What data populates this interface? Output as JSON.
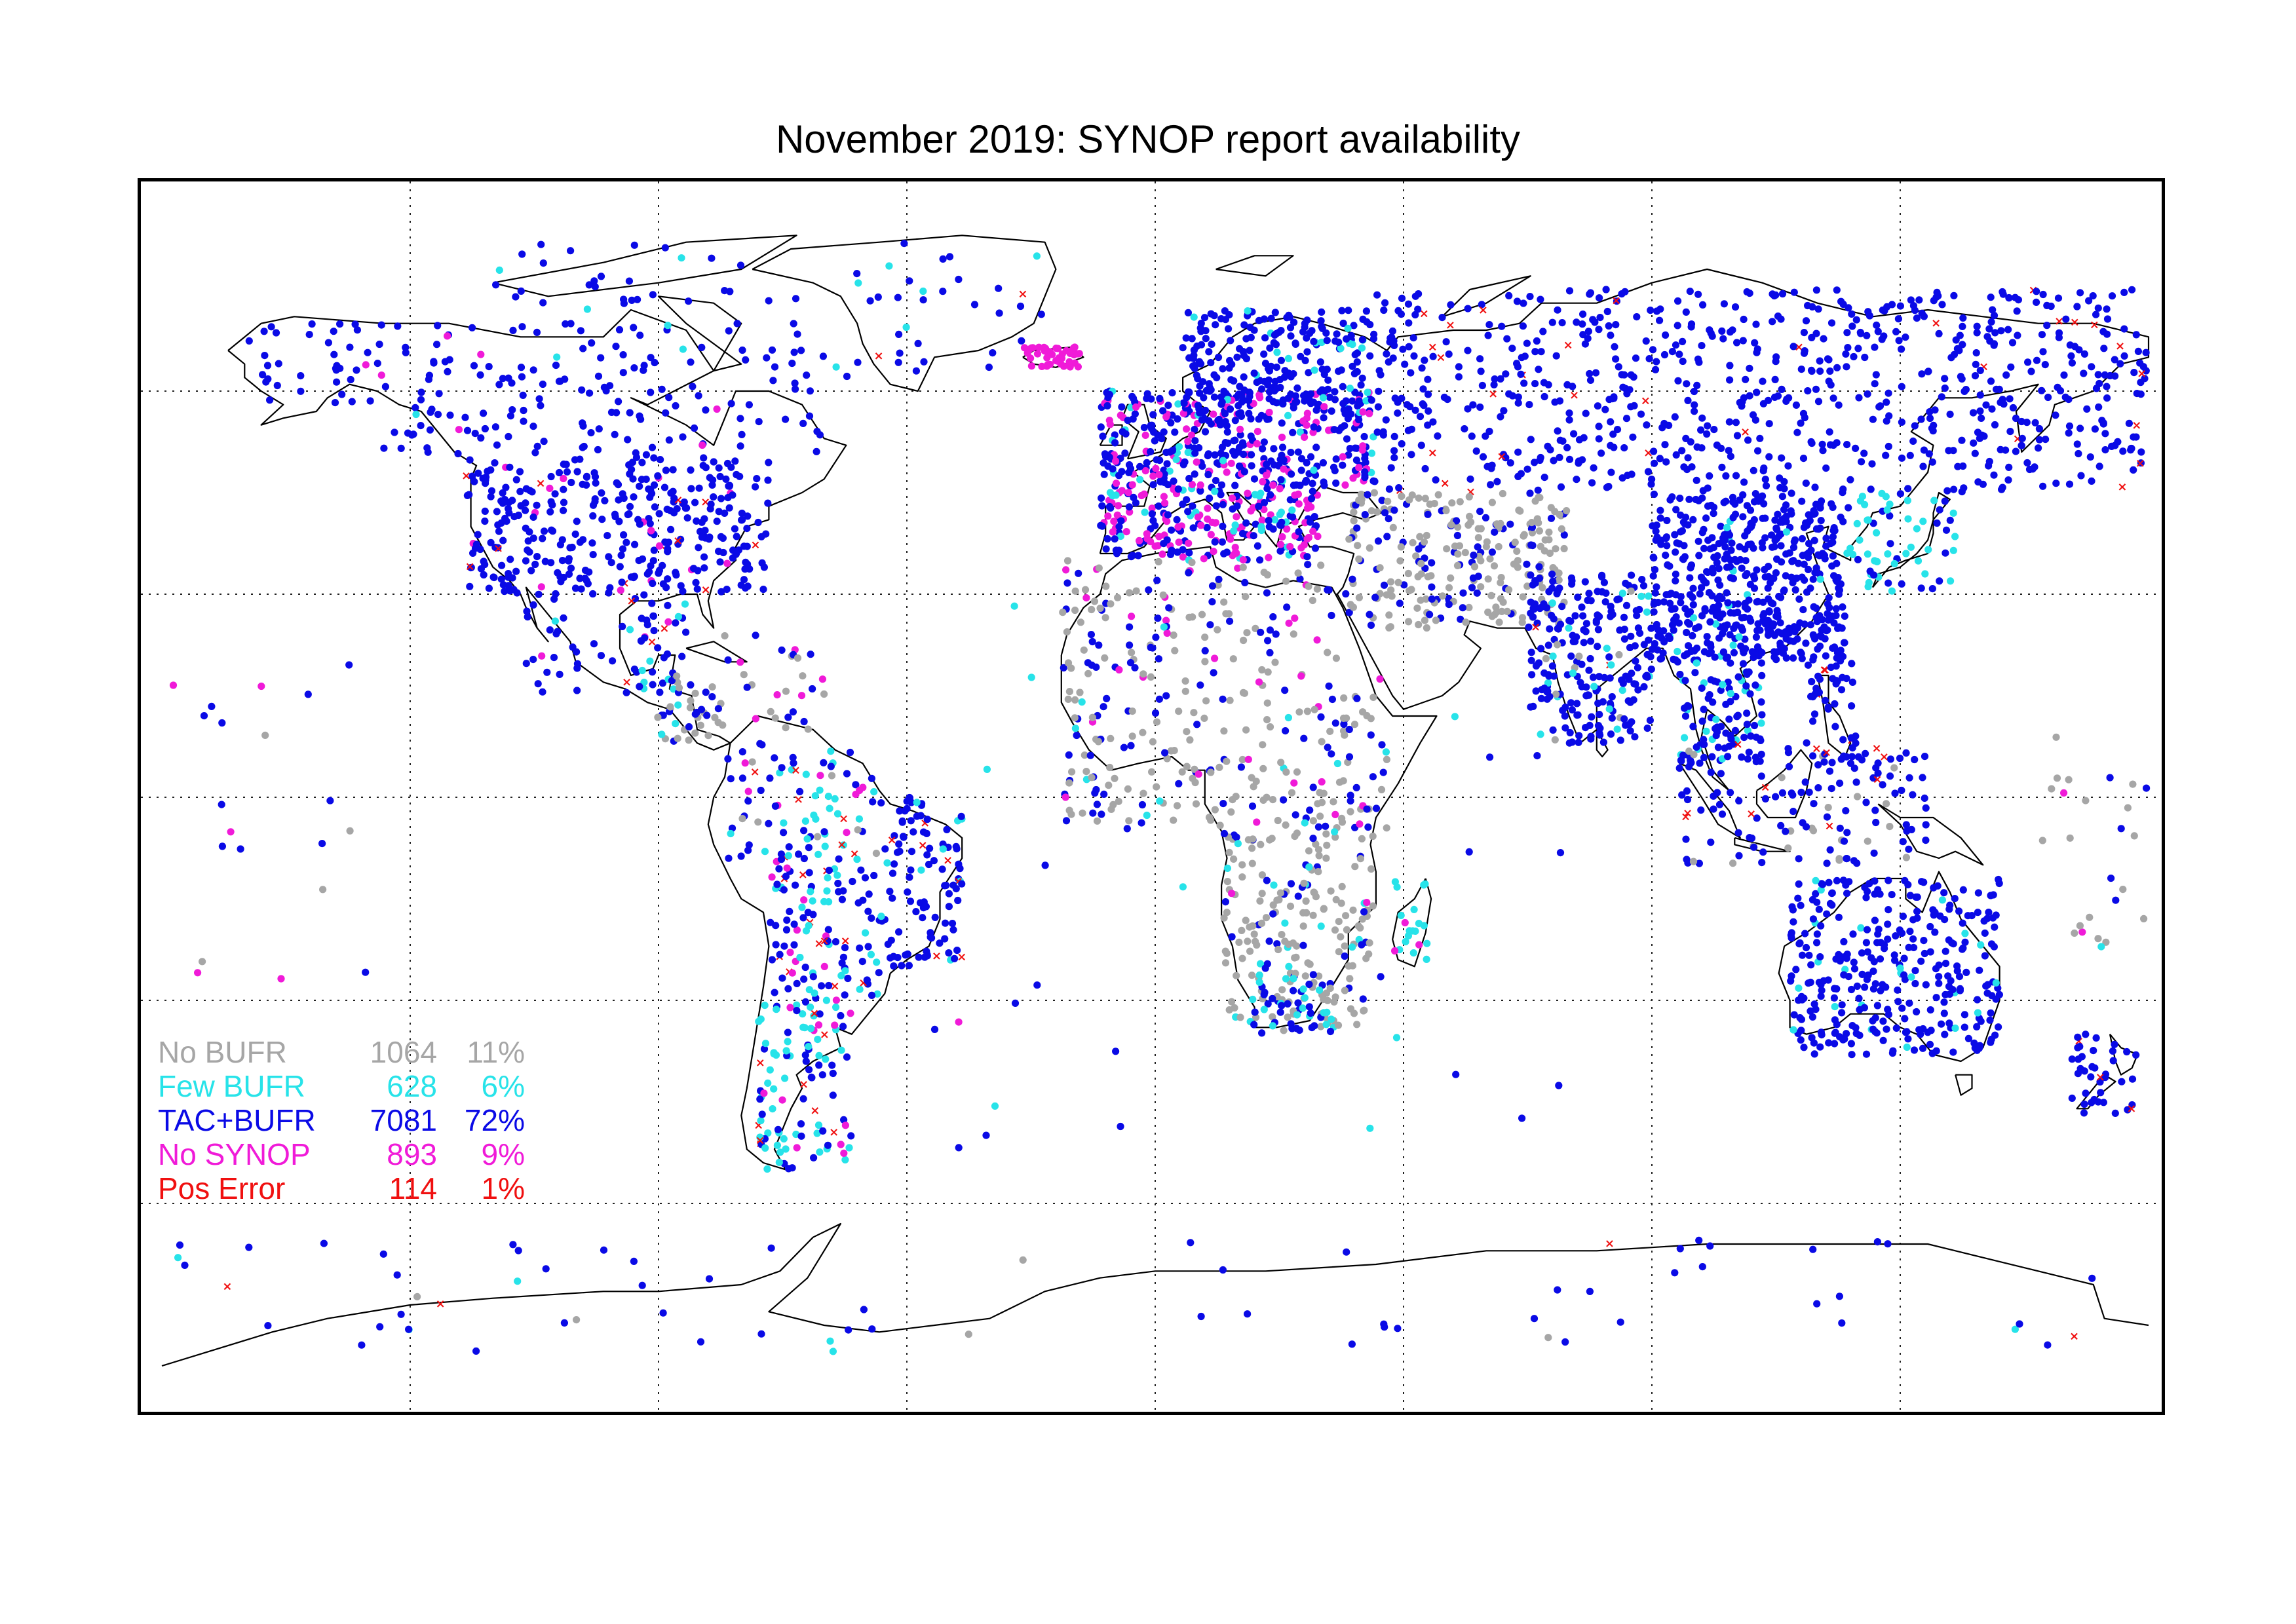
{
  "title": "November 2019: SYNOP report availability",
  "legend": [
    {
      "label": "No BUFR",
      "count": "1064",
      "percent": "11%",
      "color": "#a6a6a6"
    },
    {
      "label": "Few BUFR",
      "count": "628",
      "percent": "6%",
      "color": "#27e3e9"
    },
    {
      "label": "TAC+BUFR",
      "count": "7081",
      "percent": "72%",
      "color": "#0a0ae6"
    },
    {
      "label": "No SYNOP",
      "count": "893",
      "percent": "9%",
      "color": "#f01ad8"
    },
    {
      "label": "Pos Error",
      "count": "114",
      "percent": "1%",
      "color": "#f01010"
    }
  ],
  "map": {
    "projection": "equirectangular",
    "lon_range": [
      -180,
      180
    ],
    "lat_range": [
      -90,
      90
    ],
    "graticule_lon": [
      -135,
      -90,
      -45,
      0,
      45,
      90,
      135
    ],
    "graticule_lat": [
      -60,
      -30,
      0,
      30,
      60
    ],
    "grid": "dotted"
  }
}
